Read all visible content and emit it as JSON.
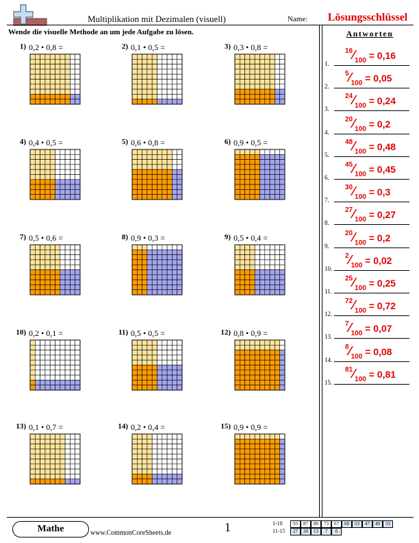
{
  "header": {
    "title": "Multiplikation mit Dezimalen (visuell)",
    "name_label": "Name:",
    "key_title": "Lösungsschlüssel"
  },
  "instructions": "Wende die visuelle Methode an um jede Aufgabe zu lösen.",
  "answers_heading": "Antworten",
  "colors": {
    "light": "#fde49b",
    "both": "#ff9c00",
    "blue": "#a2a5ee",
    "answer_red": "#e00000"
  },
  "problems": [
    {
      "num": "1)",
      "expr": "0,2 • 0,8 =",
      "a": 0.2,
      "b": 0.8
    },
    {
      "num": "2)",
      "expr": "0,1 • 0,5 =",
      "a": 0.1,
      "b": 0.5
    },
    {
      "num": "3)",
      "expr": "0,3 • 0,8 =",
      "a": 0.3,
      "b": 0.8
    },
    {
      "num": "4)",
      "expr": "0,4 • 0,5 =",
      "a": 0.4,
      "b": 0.5
    },
    {
      "num": "5)",
      "expr": "0,6 • 0,8 =",
      "a": 0.6,
      "b": 0.8
    },
    {
      "num": "6)",
      "expr": "0,9 • 0,5 =",
      "a": 0.9,
      "b": 0.5
    },
    {
      "num": "7)",
      "expr": "0,5 • 0,6 =",
      "a": 0.5,
      "b": 0.6
    },
    {
      "num": "8)",
      "expr": "0,9 • 0,3 =",
      "a": 0.9,
      "b": 0.3
    },
    {
      "num": "9)",
      "expr": "0,5 • 0,4 =",
      "a": 0.5,
      "b": 0.4
    },
    {
      "num": "10)",
      "expr": "0,2 • 0,1 =",
      "a": 0.2,
      "b": 0.1
    },
    {
      "num": "11)",
      "expr": "0,5 • 0,5 =",
      "a": 0.5,
      "b": 0.5
    },
    {
      "num": "12)",
      "expr": "0,8 • 0,9 =",
      "a": 0.8,
      "b": 0.9
    },
    {
      "num": "13)",
      "expr": "0,1 • 0,7 =",
      "a": 0.1,
      "b": 0.7
    },
    {
      "num": "14)",
      "expr": "0,2 • 0,4 =",
      "a": 0.2,
      "b": 0.4
    },
    {
      "num": "15)",
      "expr": "0,9 • 0,9 =",
      "a": 0.9,
      "b": 0.9
    }
  ],
  "answers": [
    {
      "num": "1.",
      "numerator": "16",
      "denominator": "100",
      "decimal": "= 0,16"
    },
    {
      "num": "2.",
      "numerator": "5",
      "denominator": "100",
      "decimal": "= 0,05"
    },
    {
      "num": "3.",
      "numerator": "24",
      "denominator": "100",
      "decimal": "= 0,24"
    },
    {
      "num": "4.",
      "numerator": "20",
      "denominator": "100",
      "decimal": "= 0,2"
    },
    {
      "num": "5.",
      "numerator": "48",
      "denominator": "100",
      "decimal": "= 0,48"
    },
    {
      "num": "6.",
      "numerator": "45",
      "denominator": "100",
      "decimal": "= 0,45"
    },
    {
      "num": "7.",
      "numerator": "30",
      "denominator": "100",
      "decimal": "= 0,3"
    },
    {
      "num": "8.",
      "numerator": "27",
      "denominator": "100",
      "decimal": "= 0,27"
    },
    {
      "num": "9.",
      "numerator": "20",
      "denominator": "100",
      "decimal": "= 0,2"
    },
    {
      "num": "10.",
      "numerator": "2",
      "denominator": "100",
      "decimal": "= 0,02"
    },
    {
      "num": "11.",
      "numerator": "25",
      "denominator": "100",
      "decimal": "= 0,25"
    },
    {
      "num": "12.",
      "numerator": "72",
      "denominator": "100",
      "decimal": "= 0,72"
    },
    {
      "num": "13.",
      "numerator": "7",
      "denominator": "100",
      "decimal": "= 0,07"
    },
    {
      "num": "14.",
      "numerator": "8",
      "denominator": "100",
      "decimal": "= 0,08"
    },
    {
      "num": "15.",
      "numerator": "81",
      "denominator": "100",
      "decimal": "= 0,81"
    }
  ],
  "footer": {
    "subject": "Mathe",
    "website": "www.CommonCoreSheets.de",
    "page": "1",
    "score_rows": [
      {
        "label": "1-10",
        "cells": [
          "93",
          "87",
          "80",
          "73",
          "67",
          "60",
          "53",
          "47",
          "40",
          "33"
        ]
      },
      {
        "label": "11-15",
        "cells": [
          "27",
          "20",
          "13",
          "7",
          "0"
        ]
      }
    ]
  }
}
